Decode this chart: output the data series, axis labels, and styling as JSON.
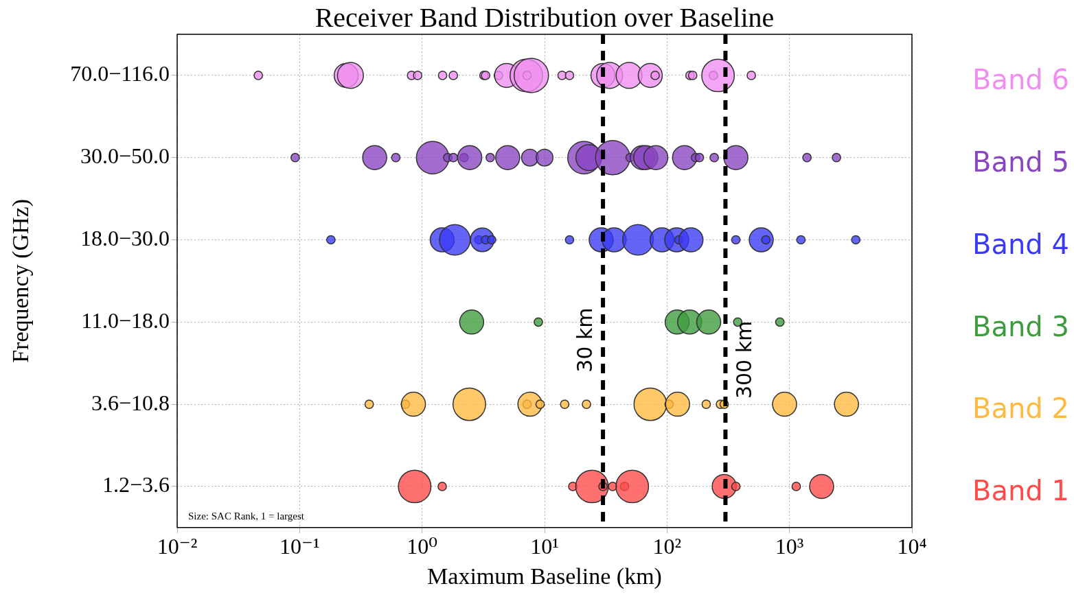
{
  "chart_data": {
    "type": "bubble",
    "title": "Receiver Band Distribution over Baseline",
    "xlabel": "Maximum Baseline (km)",
    "ylabel": "Frequency (GHz)",
    "log": "x",
    "grid": true,
    "orientation": "horizontal",
    "categories": [
      "70.0−116.0",
      "30.0−50.0",
      "18.0−30.0",
      "11.0−18.0",
      "3.6−10.8",
      "1.2−3.6"
    ],
    "xlim": [
      0.01,
      10000
    ],
    "xticks": [
      {
        "value": 0.01,
        "label": "10⁻²"
      },
      {
        "value": 0.1,
        "label": "10⁻¹"
      },
      {
        "value": 1,
        "label": "10⁰"
      },
      {
        "value": 10,
        "label": "10¹"
      },
      {
        "value": 100,
        "label": "10²"
      },
      {
        "value": 1000,
        "label": "10³"
      },
      {
        "value": 10000,
        "label": "10⁴"
      }
    ],
    "series": [
      {
        "name": "Band 6",
        "color": "#f08ef0",
        "x": [
          "70.0−116.0",
          "70.0−116.0",
          "70.0−116.0",
          "70.0−116.0",
          "70.0−116.0",
          "70.0−116.0",
          "70.0−116.0",
          "70.0−116.0",
          "70.0−116.0",
          "70.0−116.0",
          "70.0−116.0",
          "70.0−116.0",
          "70.0−116.0",
          "70.0−116.0",
          "70.0−116.0",
          "70.0−116.0",
          "70.0−116.0",
          "70.0−116.0",
          "70.0−116.0",
          "70.0−116.0",
          "70.0−116.0",
          "70.0−116.0",
          "70.0−116.0",
          "70.0−116.0",
          "70.0−116.0",
          "70.0−116.0"
        ],
        "values": [
          0.046,
          0.24,
          0.26,
          0.82,
          0.92,
          1.47,
          1.8,
          3.2,
          3.3,
          4.2,
          4.9,
          7.1,
          7.2,
          7.8,
          13.9,
          16,
          30,
          34,
          49,
          73,
          80,
          154,
          162,
          239,
          261,
          488
        ],
        "sizes": [
          0.06,
          0.49,
          0.57,
          0.06,
          0.06,
          0.06,
          0.06,
          0.06,
          0.06,
          0.06,
          0.49,
          0.9,
          0.06,
          1,
          0.06,
          0.06,
          0.49,
          0.57,
          0.57,
          0.49,
          0.06,
          0.06,
          0.06,
          0.06,
          0.9,
          0.06
        ]
      },
      {
        "name": "Band 5",
        "color": "#8a45c2",
        "x": [
          "30.0−50.0",
          "30.0−50.0",
          "30.0−50.0",
          "30.0−50.0",
          "30.0−50.0",
          "30.0−50.0",
          "30.0−50.0",
          "30.0−50.0",
          "30.0−50.0",
          "30.0−50.0",
          "30.0−50.0",
          "30.0−50.0",
          "30.0−50.0",
          "30.0−50.0",
          "30.0−50.0",
          "30.0−50.0",
          "30.0−50.0",
          "30.0−50.0",
          "30.0−50.0",
          "30.0−50.0",
          "30.0−50.0",
          "30.0−50.0",
          "30.0−50.0",
          "30.0−50.0",
          "30.0−50.0",
          "30.0−50.0"
        ],
        "values": [
          0.092,
          0.41,
          0.61,
          1.22,
          1.62,
          1.8,
          2.2,
          2.45,
          3.6,
          5.0,
          7.6,
          10,
          21,
          23,
          36,
          50,
          63,
          67,
          81,
          139,
          171,
          184,
          243,
          365,
          1390,
          2420
        ],
        "sizes": [
          0.06,
          0.49,
          0.06,
          0.9,
          0.06,
          0.06,
          0.06,
          0.49,
          0.06,
          0.49,
          0.24,
          0.24,
          0.9,
          0.57,
          1,
          0.06,
          0.49,
          0.49,
          0.49,
          0.49,
          0.06,
          0.06,
          0.06,
          0.49,
          0.06,
          0.06
        ]
      },
      {
        "name": "Band 4",
        "color": "#3a3af5",
        "x": [
          "18.0−30.0",
          "18.0−30.0",
          "18.0−30.0",
          "18.0−30.0",
          "18.0−30.0",
          "18.0−30.0",
          "18.0−30.0",
          "18.0−30.0",
          "18.0−30.0",
          "18.0−30.0",
          "18.0−30.0",
          "18.0−30.0",
          "18.0−30.0",
          "18.0−30.0",
          "18.0−30.0",
          "18.0−30.0",
          "18.0−30.0",
          "18.0−30.0",
          "18.0−30.0",
          "18.0−30.0"
        ],
        "values": [
          0.18,
          1.46,
          1.85,
          2.9,
          3.1,
          3.3,
          3.7,
          16,
          29,
          37,
          58,
          91,
          120,
          125,
          157,
          365,
          588,
          641,
          1240,
          3480
        ],
        "sizes": [
          0.06,
          0.49,
          0.8,
          0.06,
          0.47,
          0.06,
          0.06,
          0.06,
          0.49,
          0.49,
          0.8,
          0.49,
          0.49,
          0.06,
          0.49,
          0.06,
          0.49,
          0.06,
          0.06,
          0.06
        ]
      },
      {
        "name": "Band 3",
        "color": "#3d9c3d",
        "x": [
          "11.0−18.0",
          "11.0−18.0",
          "11.0−18.0",
          "11.0−18.0",
          "11.0−18.0",
          "11.0−18.0",
          "11.0−18.0"
        ],
        "values": [
          2.54,
          8.9,
          121,
          153,
          219,
          378,
          835
        ],
        "sizes": [
          0.49,
          0.06,
          0.49,
          0.49,
          0.49,
          0.06,
          0.06
        ]
      },
      {
        "name": "Band 2",
        "color": "#ffb940",
        "x": [
          "3.6−10.8",
          "3.6−10.8",
          "3.6−10.8",
          "3.6−10.8",
          "3.6−10.8",
          "3.6−10.8",
          "3.6−10.8",
          "3.6−10.8",
          "3.6−10.8",
          "3.6−10.8",
          "3.6−10.8",
          "3.6−10.8",
          "3.6−10.8",
          "3.6−10.8",
          "3.6−10.8",
          "3.6−10.8",
          "3.6−10.8"
        ],
        "values": [
          0.37,
          0.73,
          0.85,
          2.43,
          7.2,
          7.6,
          9.2,
          14.6,
          22,
          73,
          104,
          122,
          209,
          273,
          293,
          912,
          2920
        ],
        "sizes": [
          0.06,
          0.06,
          0.49,
          0.9,
          0.06,
          0.49,
          0.06,
          0.06,
          0.06,
          0.9,
          0.06,
          0.49,
          0.06,
          0.06,
          0.06,
          0.49,
          0.49
        ]
      },
      {
        "name": "Band 1",
        "color": "#ff4a4a",
        "x": [
          "1.2−3.6",
          "1.2−3.6",
          "1.2−3.6",
          "1.2−3.6",
          "1.2−3.6",
          "1.2−3.6",
          "1.2−3.6",
          "1.2−3.6",
          "1.2−3.6",
          "1.2−3.6",
          "1.2−3.6",
          "1.2−3.6"
        ],
        "values": [
          0.87,
          1.46,
          17,
          24.4,
          30,
          36,
          45,
          52,
          293,
          365,
          1135,
          1830
        ],
        "sizes": [
          0.9,
          0.06,
          0.06,
          0.9,
          0.06,
          0.06,
          0.06,
          0.9,
          0.49,
          0.06,
          0.06,
          0.49
        ]
      }
    ],
    "ref_lines": [
      {
        "axis": "x",
        "value": 30,
        "label": "30 km",
        "color": "#000000",
        "line_style": "dashed"
      },
      {
        "axis": "x",
        "value": 300,
        "label": "300 km",
        "color": "#000000",
        "line_style": "dashed"
      }
    ],
    "annotations": [
      "Size: SAC Rank, 1 = largest"
    ]
  }
}
